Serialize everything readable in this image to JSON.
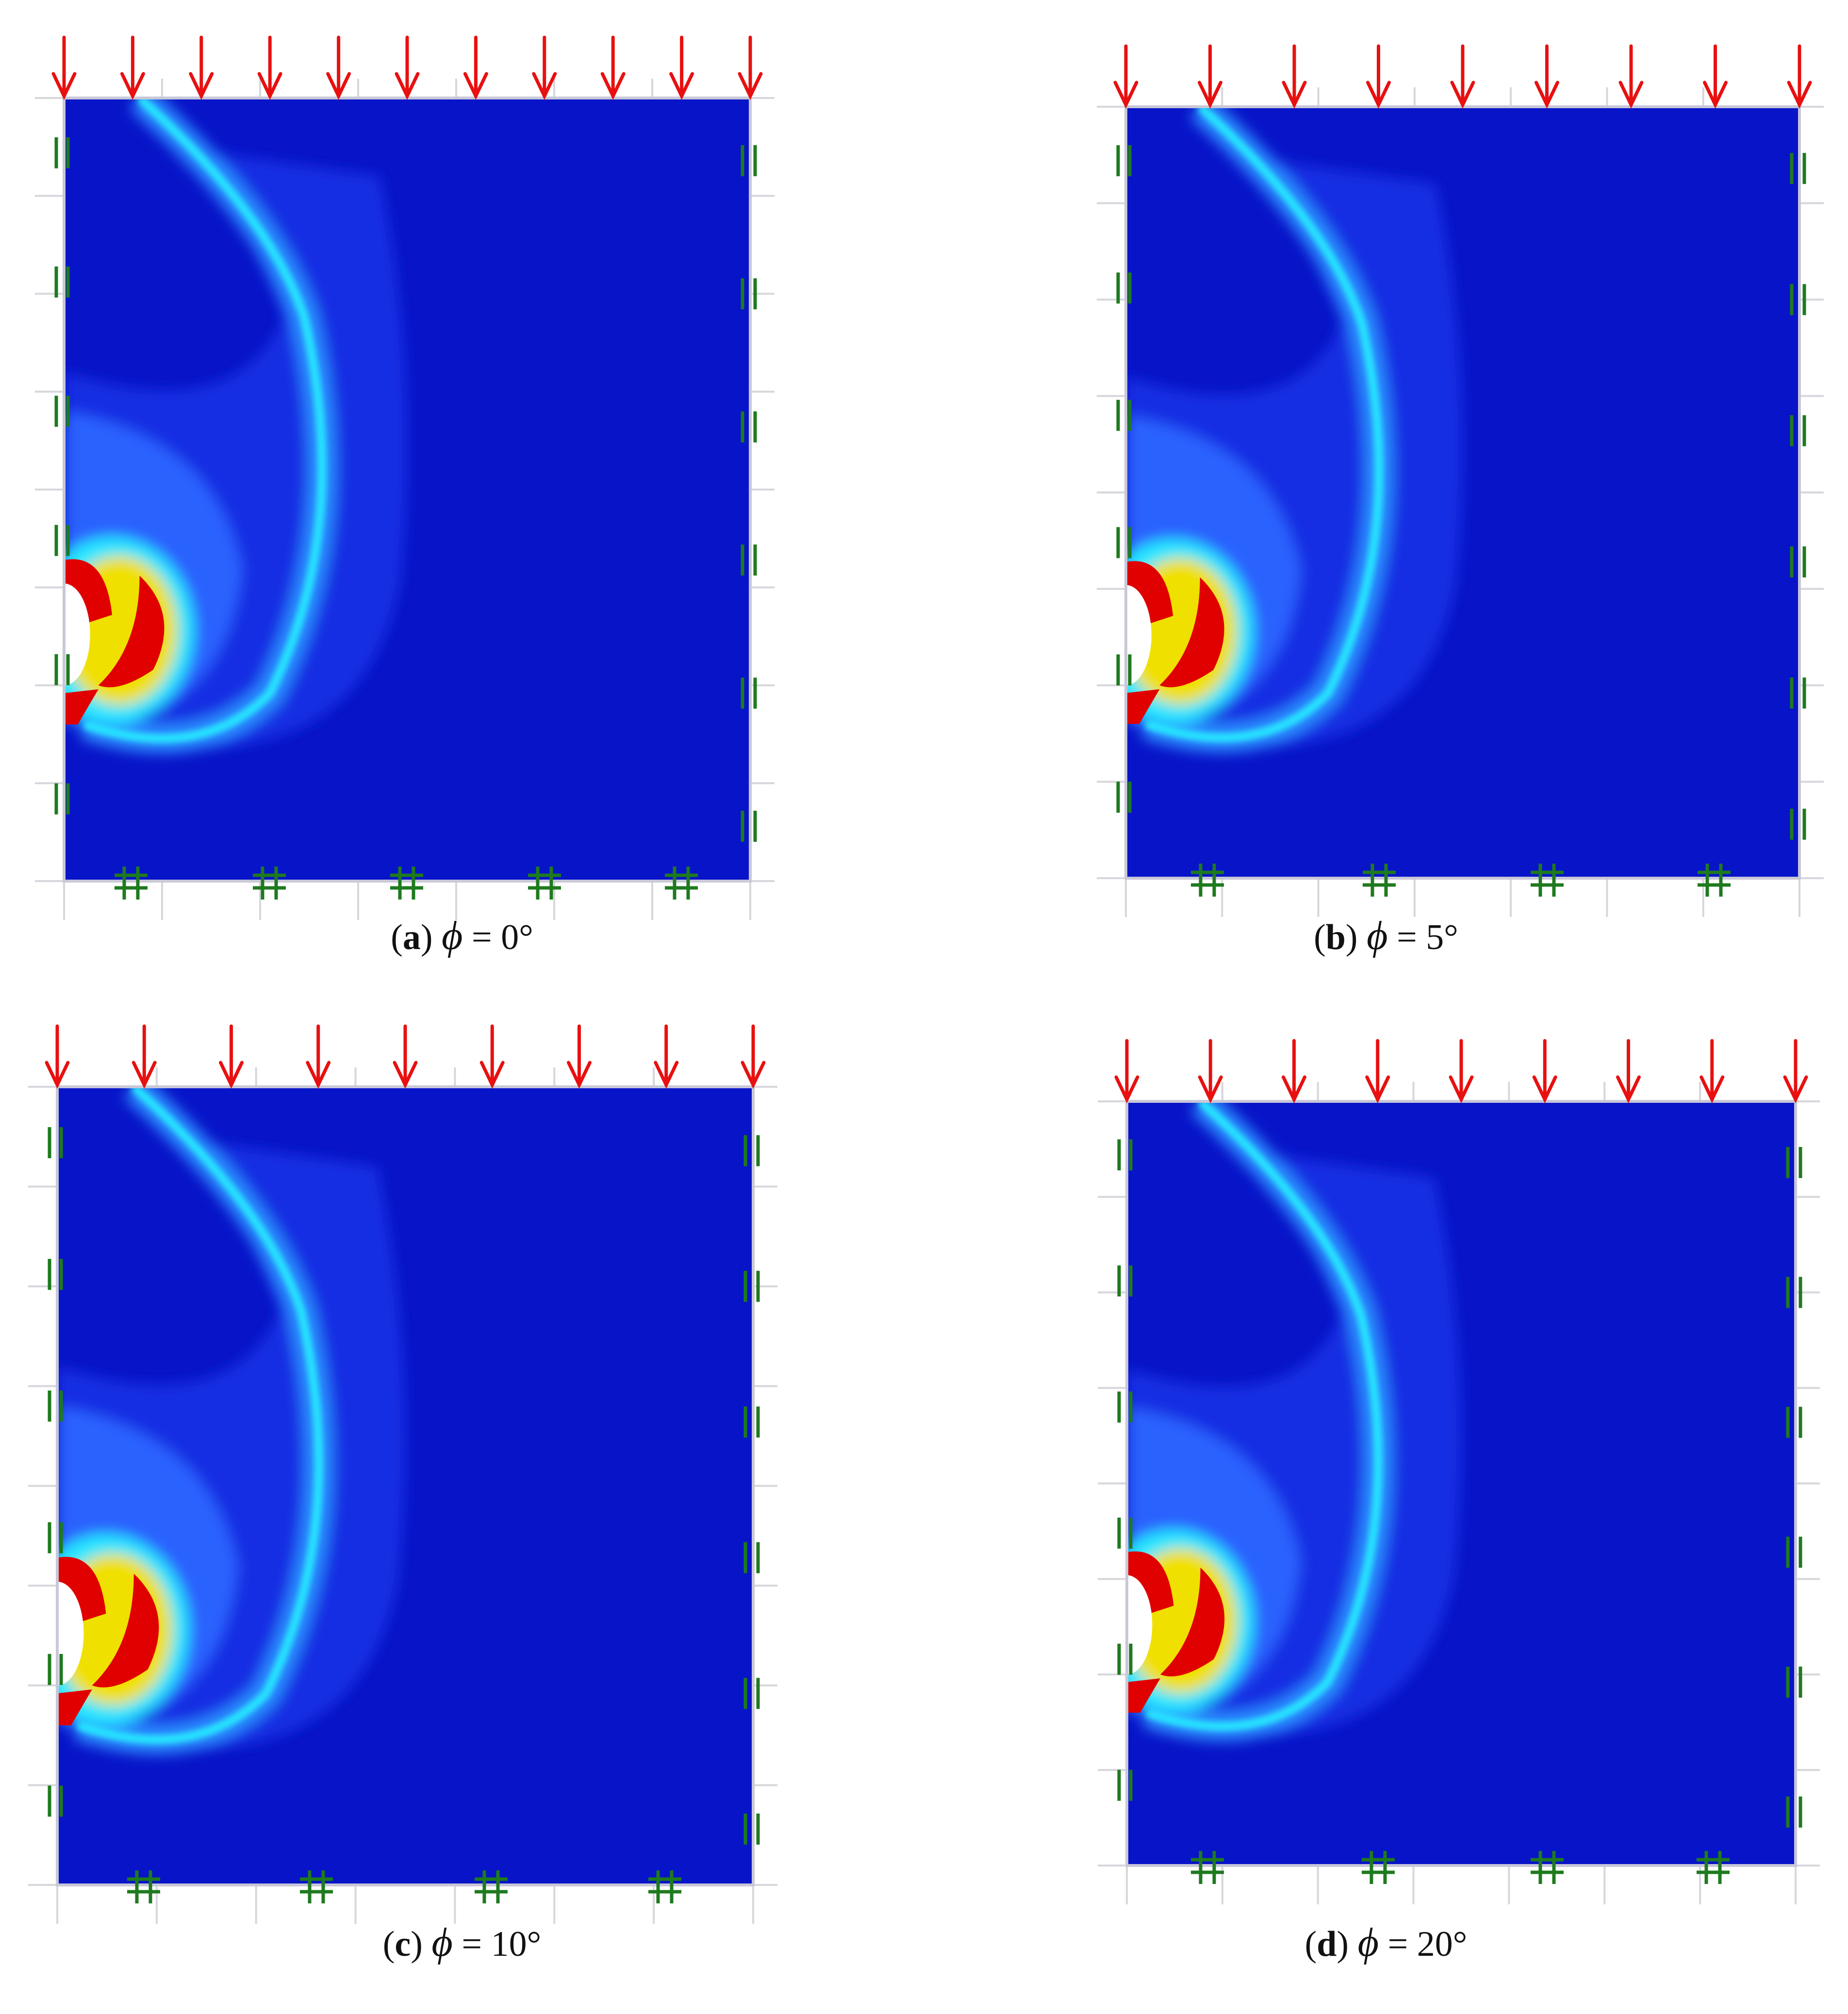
{
  "panels": [
    {
      "id": "a",
      "label": "a",
      "symbol": "ϕ",
      "equals": "=",
      "value": "0°"
    },
    {
      "id": "b",
      "label": "b",
      "symbol": "ϕ",
      "equals": "=",
      "value": "5°"
    },
    {
      "id": "c",
      "label": "c",
      "symbol": "ϕ",
      "equals": "=",
      "value": "10°"
    },
    {
      "id": "d",
      "label": "d",
      "symbol": "ϕ",
      "equals": "=",
      "value": "20°"
    }
  ],
  "colors": {
    "background_field": "#0814c8",
    "load_arrow": "#e81010",
    "support_symbol": "#1e7a1e",
    "high_strain": "#e00000",
    "mid_strain": "#f0e000",
    "low_strain": "#28e6ff"
  },
  "legend_icons": [
    "load-arrow-icon",
    "roller-support-icon",
    "fixed-support-icon"
  ]
}
